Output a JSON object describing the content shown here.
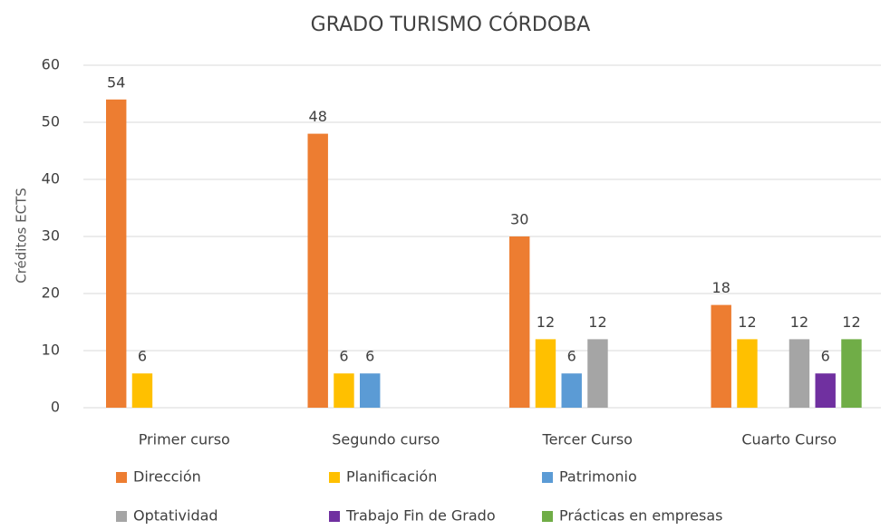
{
  "chart_data": {
    "type": "bar",
    "title": "GRADO TURISMO CÓRDOBA",
    "y_label": "Créditos ECTS",
    "categories": [
      "Primer curso",
      "Segundo curso",
      "Tercer Curso",
      "Cuarto Curso"
    ],
    "series": [
      {
        "name": "Dirección",
        "color": "#ed7d31",
        "values": [
          54,
          48,
          30,
          18
        ]
      },
      {
        "name": "Planificación",
        "color": "#ffc000",
        "values": [
          6,
          6,
          12,
          12
        ]
      },
      {
        "name": "Patrimonio",
        "color": "#5b9bd5",
        "values": [
          null,
          6,
          6,
          null
        ]
      },
      {
        "name": "Optatividad",
        "color": "#a5a5a5",
        "values": [
          null,
          null,
          12,
          12
        ]
      },
      {
        "name": "Trabajo Fin de Grado",
        "color": "#7030a0",
        "values": [
          null,
          null,
          null,
          6
        ]
      },
      {
        "name": "Prácticas en empresas",
        "color": "#70ad47",
        "values": [
          null,
          null,
          null,
          12
        ]
      }
    ],
    "ylim": [
      0,
      60
    ],
    "yticks": [
      0,
      10,
      20,
      30,
      40,
      50,
      60
    ],
    "grid": true,
    "legend": "bottom"
  }
}
